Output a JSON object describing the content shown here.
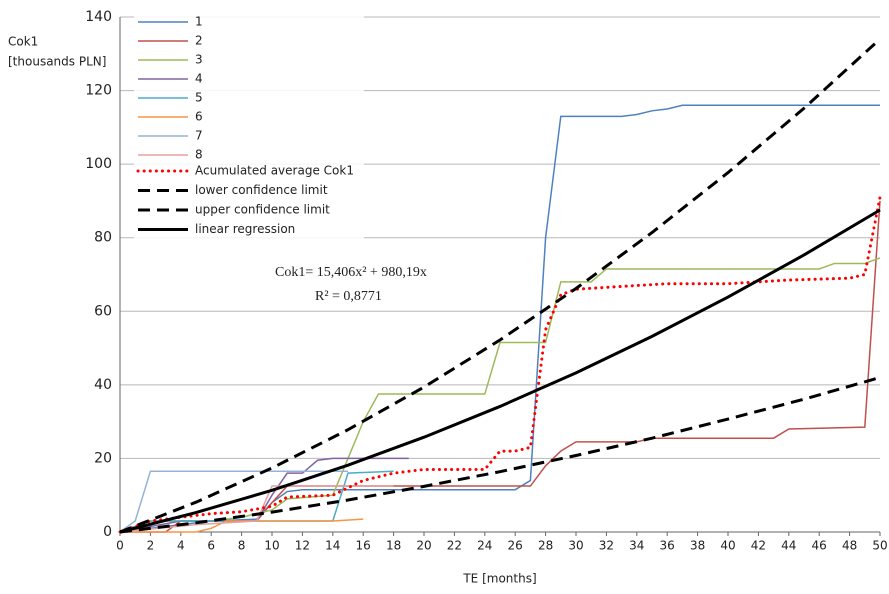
{
  "chart_data": {
    "type": "line",
    "ylabel": [
      "Cok1",
      "[thousands PLN]"
    ],
    "xlabel": "TE [months]",
    "annotations": [
      "Cok1= 15,406x² + 980,19x",
      "R² = 0,8771"
    ],
    "xlim": [
      0,
      50
    ],
    "xticks": [
      0,
      2,
      4,
      6,
      8,
      10,
      12,
      14,
      16,
      18,
      20,
      22,
      24,
      26,
      28,
      30,
      32,
      34,
      36,
      38,
      40,
      42,
      44,
      46,
      48,
      50
    ],
    "ylim": [
      0,
      140
    ],
    "yticks": [
      0,
      20,
      40,
      60,
      80,
      100,
      120,
      140
    ],
    "grid": true,
    "legend": "top-left",
    "series": [
      {
        "name": "1",
        "color": "#4f81bd",
        "style": "solid",
        "x": [
          0,
          3,
          6,
          9,
          10,
          11,
          12,
          26,
          27,
          28,
          29,
          33,
          34,
          35,
          36,
          37,
          50
        ],
        "values": [
          0,
          1.5,
          3,
          3.5,
          8,
          11,
          11.5,
          11.5,
          14,
          80,
          113,
          113,
          113.5,
          114.5,
          115,
          116,
          116
        ]
      },
      {
        "name": "2",
        "color": "#c0504d",
        "style": "solid",
        "x": [
          0,
          3,
          4,
          9,
          10,
          11,
          27,
          28,
          29,
          30,
          34,
          35,
          43,
          44,
          49,
          50
        ],
        "values": [
          0,
          0,
          3,
          3,
          8,
          12.5,
          12.5,
          18,
          22,
          24.5,
          24.5,
          25.5,
          25.5,
          28,
          28.5,
          90
        ]
      },
      {
        "name": "3",
        "color": "#9bbb59",
        "style": "solid",
        "x": [
          0,
          2,
          6,
          8,
          10,
          11,
          14,
          15,
          16,
          17,
          24,
          25,
          28,
          29,
          31,
          32,
          46,
          47,
          49,
          50
        ],
        "values": [
          0,
          3,
          3,
          4,
          6,
          9,
          10,
          20,
          30,
          37.5,
          37.5,
          51.5,
          51.5,
          68,
          68,
          71.5,
          71.5,
          73,
          73,
          74.5
        ]
      },
      {
        "name": "4",
        "color": "#8064a2",
        "style": "solid",
        "x": [
          0,
          4,
          9,
          10,
          11,
          12,
          13,
          14,
          19
        ],
        "values": [
          0,
          3,
          3,
          10,
          16,
          16,
          19.5,
          20,
          20
        ]
      },
      {
        "name": "5",
        "color": "#4bacc6",
        "style": "solid",
        "x": [
          0,
          2,
          14,
          15,
          18
        ],
        "values": [
          0,
          3,
          3,
          16,
          16.5
        ]
      },
      {
        "name": "6",
        "color": "#f79646",
        "style": "solid",
        "x": [
          0,
          5,
          6,
          7,
          14,
          16
        ],
        "values": [
          0,
          0,
          1,
          3,
          3,
          3.5
        ]
      },
      {
        "name": "7",
        "color": "#95b3d7",
        "style": "solid",
        "x": [
          0,
          1,
          2,
          15
        ],
        "values": [
          0,
          3,
          16.5,
          16.5
        ]
      },
      {
        "name": "8",
        "color": "#e6a0a0",
        "style": "solid",
        "x": [
          0,
          5,
          9,
          10,
          18
        ],
        "values": [
          0,
          2,
          3,
          12.5,
          12.5
        ]
      },
      {
        "name": "Acumulated average Cok1",
        "color": "#ff0000",
        "style": "dotted",
        "x": [
          0,
          2,
          4,
          6,
          8,
          10,
          11,
          14,
          16,
          18,
          20,
          24,
          25,
          26,
          27,
          28,
          29,
          30,
          32,
          36,
          40,
          44,
          48,
          49,
          50
        ],
        "values": [
          0,
          3,
          4,
          5,
          5.5,
          7,
          9.5,
          10,
          14,
          16,
          17,
          17,
          22,
          22,
          23,
          55,
          64.5,
          66,
          66.5,
          67.5,
          67.5,
          68.5,
          69,
          70,
          91
        ]
      },
      {
        "name": "lower confidence limit",
        "color": "#000000",
        "style": "dashed",
        "x": [
          0,
          5,
          10,
          15,
          20,
          25,
          30,
          35,
          40,
          45,
          50
        ],
        "values": [
          0,
          2.5,
          5.4,
          8.7,
          12.4,
          16.4,
          20.8,
          25.5,
          30.7,
          36.1,
          42
        ]
      },
      {
        "name": "upper confidence limit",
        "color": "#000000",
        "style": "dashed",
        "x": [
          0,
          5,
          10,
          15,
          20,
          25,
          30,
          35,
          40,
          45,
          50
        ],
        "values": [
          0,
          8.1,
          17.4,
          27.8,
          39.4,
          52.2,
          66.2,
          81.4,
          97.7,
          115.2,
          134
        ]
      },
      {
        "name": "linear regression",
        "color": "#000000",
        "style": "solid-thick",
        "x": [
          0,
          5,
          10,
          15,
          20,
          25,
          30,
          35,
          40,
          45,
          50
        ],
        "values": [
          0,
          5.29,
          11.34,
          18.17,
          25.77,
          34.13,
          43.27,
          53.18,
          63.86,
          75.31,
          87.53
        ]
      }
    ]
  }
}
